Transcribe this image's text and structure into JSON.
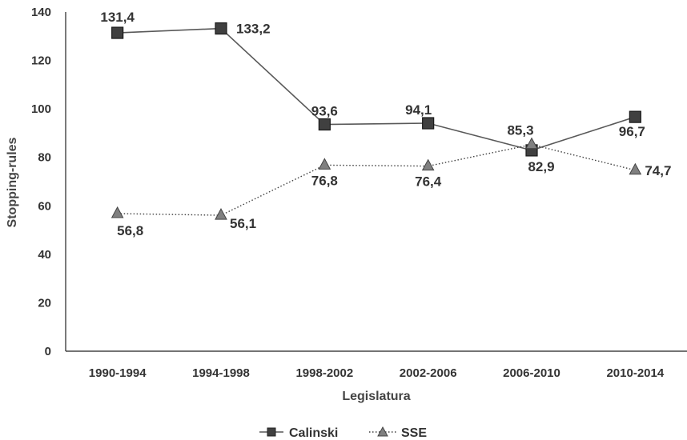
{
  "chart_data": {
    "type": "line",
    "title": "",
    "xlabel": "Legislatura",
    "ylabel": "Stopping-rules",
    "categories": [
      "1990-1994",
      "1994-1998",
      "1998-2002",
      "2002-2006",
      "2006-2010",
      "2010-2014"
    ],
    "ylim": [
      0,
      140
    ],
    "yticks": [
      0,
      20,
      40,
      60,
      80,
      100,
      120,
      140
    ],
    "grid": false,
    "legend_position": "bottom",
    "series": [
      {
        "name": "Calinski",
        "values": [
          131.4,
          133.2,
          93.6,
          94.1,
          82.9,
          96.7
        ],
        "labels": [
          "131,4",
          "133,2",
          "93,6",
          "94,1",
          "82,9",
          "96,7"
        ],
        "marker": "square",
        "line_style": "solid",
        "color": "#595959",
        "marker_color": "#404040"
      },
      {
        "name": "SSE",
        "values": [
          56.8,
          56.1,
          76.8,
          76.4,
          85.3,
          74.7
        ],
        "labels": [
          "56,8",
          "56,1",
          "76,8",
          "76,4",
          "85,3",
          "74,7"
        ],
        "marker": "triangle",
        "line_style": "dotted",
        "color": "#404040",
        "marker_color": "#808080"
      }
    ]
  }
}
